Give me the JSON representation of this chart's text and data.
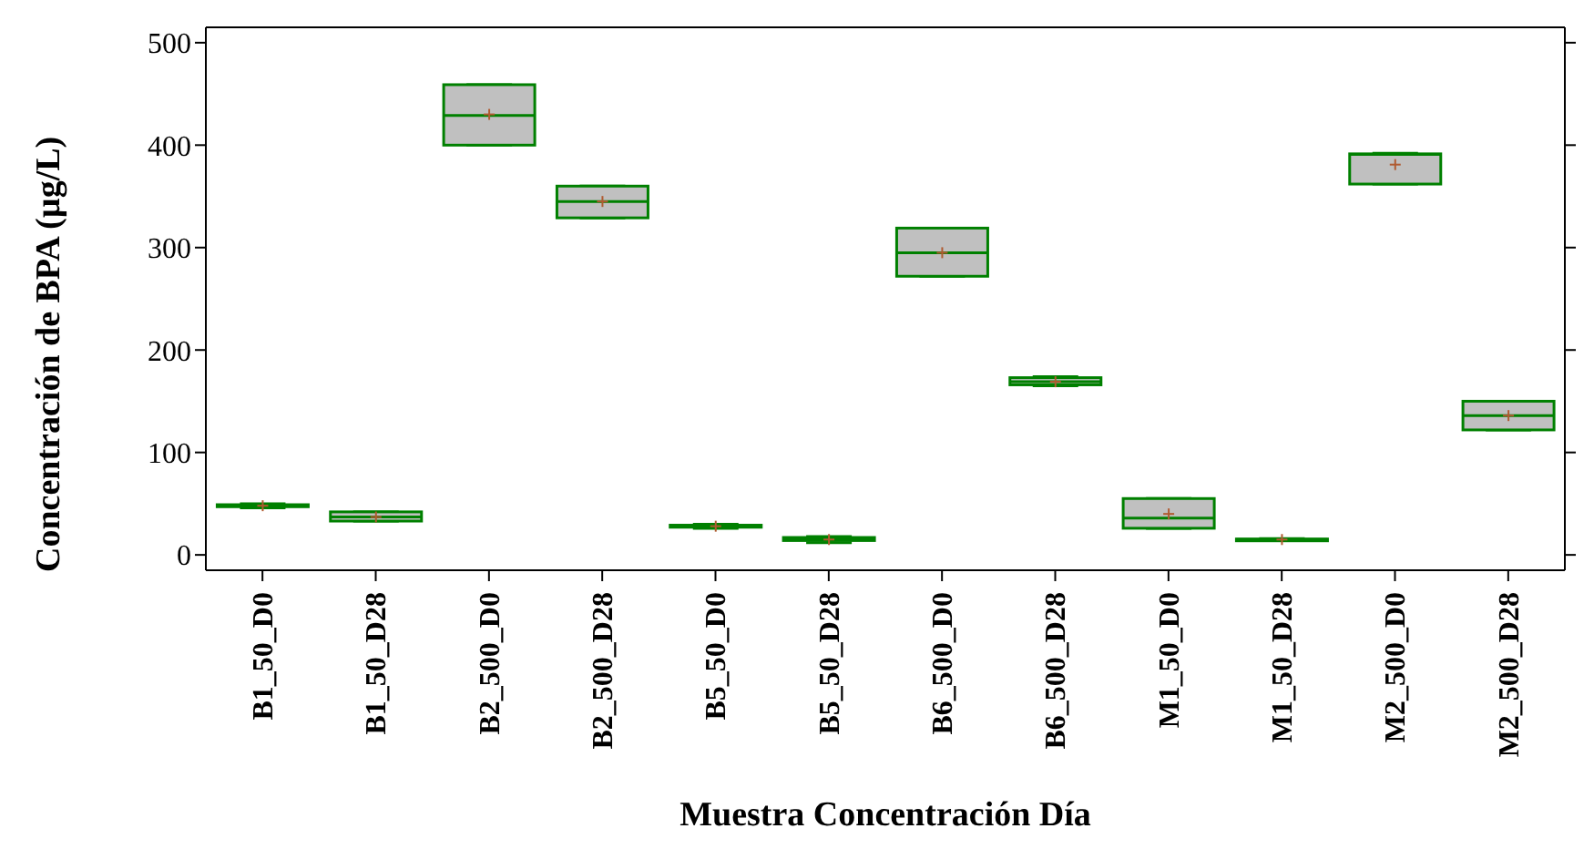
{
  "chart_data": {
    "type": "box",
    "xlabel": "Muestra  Concentración  Día",
    "ylabel": "Concentración de BPA  (µg/L)",
    "color": "#c0c0c0",
    "categories": [
      "B1_50_D0",
      "B1_50_D28",
      "B2_500_D0",
      "B2_500_D28",
      "B5_50_D0",
      "B5_50_D28",
      "B6_500_D0",
      "B6_500_D28",
      "M1_50_D0",
      "M1_50_D28",
      "M2_500_D0",
      "M2_500_D28"
    ],
    "boxes": [
      {
        "low": 46,
        "q1": 47,
        "median": 48,
        "q3": 49,
        "high": 50,
        "mean": 48
      },
      {
        "low": 33,
        "q1": 33,
        "median": 37,
        "q3": 42,
        "high": 42,
        "mean": 37
      },
      {
        "low": 400,
        "q1": 400,
        "median": 429,
        "q3": 459,
        "high": 459,
        "mean": 430
      },
      {
        "low": 329,
        "q1": 329,
        "median": 345,
        "q3": 360,
        "high": 360,
        "mean": 345
      },
      {
        "low": 26,
        "q1": 27,
        "median": 28,
        "q3": 29,
        "high": 30,
        "mean": 28
      },
      {
        "low": 12,
        "q1": 14,
        "median": 15,
        "q3": 17,
        "high": 18,
        "mean": 15
      },
      {
        "low": 272,
        "q1": 272,
        "median": 295,
        "q3": 319,
        "high": 319,
        "mean": 295
      },
      {
        "low": 165,
        "q1": 166,
        "median": 169,
        "q3": 173,
        "high": 174,
        "mean": 169
      },
      {
        "low": 26,
        "q1": 26,
        "median": 36,
        "q3": 55,
        "high": 55,
        "mean": 40
      },
      {
        "low": 14,
        "q1": 14.5,
        "median": 15,
        "q3": 15.5,
        "high": 16,
        "mean": 15
      },
      {
        "low": 362,
        "q1": 362,
        "median": 391,
        "q3": 391.5,
        "high": 392,
        "mean": 381
      },
      {
        "low": 122,
        "q1": 122,
        "median": 136,
        "q3": 150,
        "high": 150,
        "mean": 136
      }
    ],
    "ylim": [
      -15,
      515
    ],
    "yticks": [
      0,
      100,
      200,
      300,
      400,
      500
    ],
    "grid": false
  }
}
